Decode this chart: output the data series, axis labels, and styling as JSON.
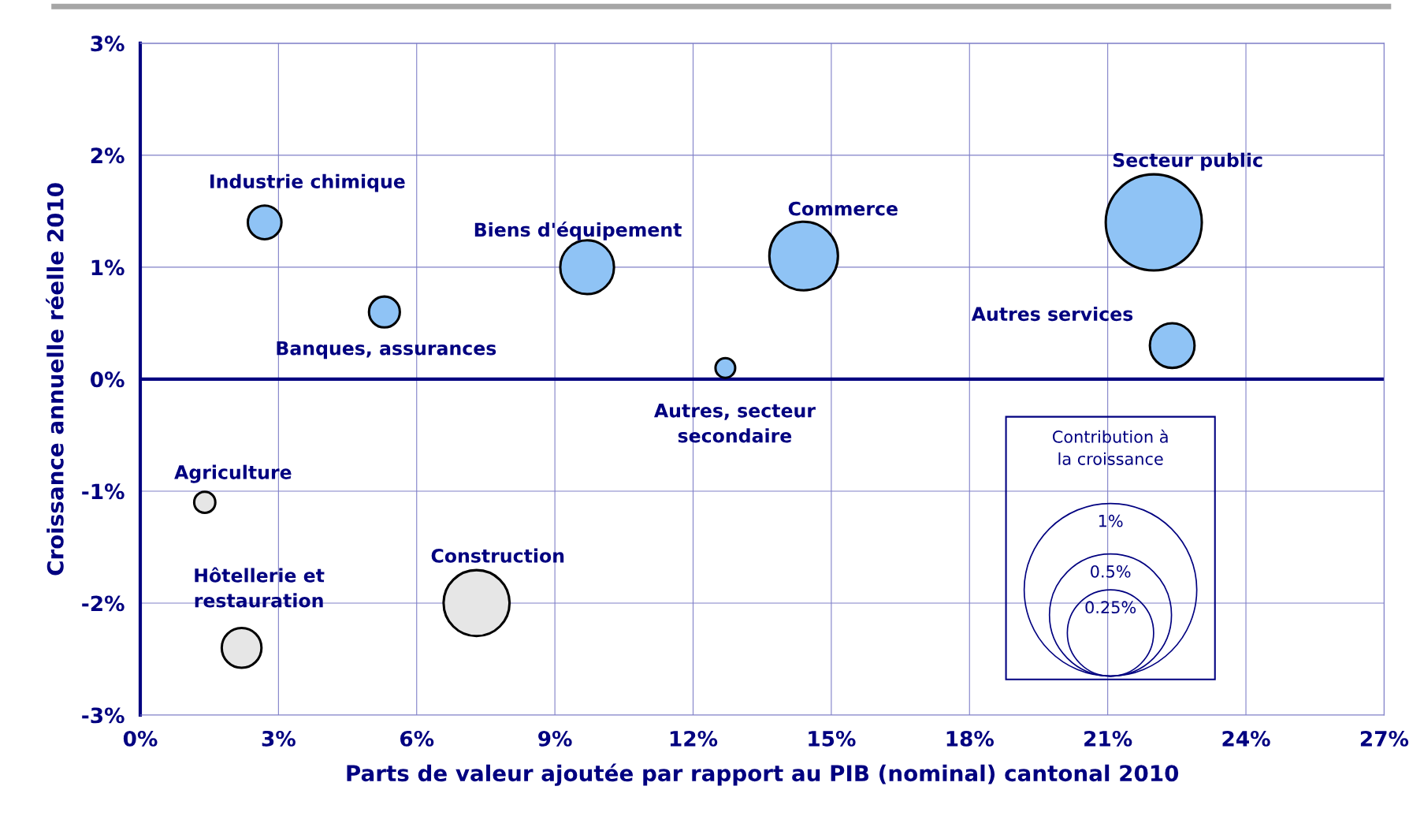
{
  "chart_data": {
    "type": "bubble",
    "xlabel": "Parts de valeur ajoutée par rapport au PIB (nominal) cantonal 2010",
    "ylabel": "Croissance annuelle réelle 2010",
    "series": [
      {
        "color": "#8fc3f5",
        "x": [
          2.7,
          5.3,
          9.7,
          14.4,
          12.7,
          22.0,
          22.4
        ],
        "values": [
          1.4,
          0.6,
          1.0,
          1.1,
          0.1,
          1.4,
          0.3
        ],
        "sizes": [
          0.038,
          0.032,
          0.097,
          0.158,
          0.013,
          0.31,
          0.067
        ]
      },
      {
        "color": "#e6e6e6",
        "x": [
          1.4,
          2.2,
          7.3
        ],
        "values": [
          -1.1,
          -2.4,
          -2.0
        ],
        "sizes": [
          0.015,
          0.053,
          0.146
        ]
      }
    ],
    "size_legend": [
      {
        "value": 1,
        "label": "1%"
      },
      {
        "value": 0.5,
        "label": "0.5%"
      },
      {
        "value": 0.25,
        "label": "0.25%"
      }
    ],
    "legend_title": "Contribution à\nla croissance",
    "annotations": [
      {
        "text": "Industrie chimique",
        "x": 2.7,
        "y": 1.4
      },
      {
        "text": "Banques, assurances",
        "x": 5.3,
        "y": 0.6
      },
      {
        "text": "Biens d'équipement",
        "x": 9.7,
        "y": 1.0
      },
      {
        "text": "Commerce",
        "x": 14.4,
        "y": 1.1
      },
      {
        "text": "Autres, secteur\nsecondaire",
        "x": 12.7,
        "y": 0.1
      },
      {
        "text": "Secteur public",
        "x": 22.0,
        "y": 1.4
      },
      {
        "text": "Autres services",
        "x": 22.4,
        "y": 0.3
      },
      {
        "text": "Agriculture",
        "x": 1.4,
        "y": -1.1
      },
      {
        "text": "Hôtellerie et\nrestauration",
        "x": 2.2,
        "y": -2.4
      },
      {
        "text": "Construction",
        "x": 7.3,
        "y": -2.0
      }
    ],
    "xlim": [
      0,
      27
    ],
    "xticks": [
      {
        "value": 0,
        "label": "0%"
      },
      {
        "value": 3,
        "label": "3%"
      },
      {
        "value": 6,
        "label": "6%"
      },
      {
        "value": 9,
        "label": "9%"
      },
      {
        "value": 12,
        "label": "12%"
      },
      {
        "value": 15,
        "label": "15%"
      },
      {
        "value": 18,
        "label": "18%"
      },
      {
        "value": 21,
        "label": "21%"
      },
      {
        "value": 24,
        "label": "24%"
      },
      {
        "value": 27,
        "label": "27%"
      }
    ],
    "ylim": [
      -3,
      3
    ],
    "yticks": [
      {
        "value": -3,
        "label": "-3%"
      },
      {
        "value": -2,
        "label": "-2%"
      },
      {
        "value": -1,
        "label": "-1%"
      },
      {
        "value": 0,
        "label": "0%"
      },
      {
        "value": 1,
        "label": "1%"
      },
      {
        "value": 2,
        "label": "2%"
      },
      {
        "value": 3,
        "label": "3%"
      }
    ],
    "ref_lines": [
      {
        "axis": "y",
        "value": 0,
        "color": "#000080"
      }
    ],
    "grid": true
  }
}
